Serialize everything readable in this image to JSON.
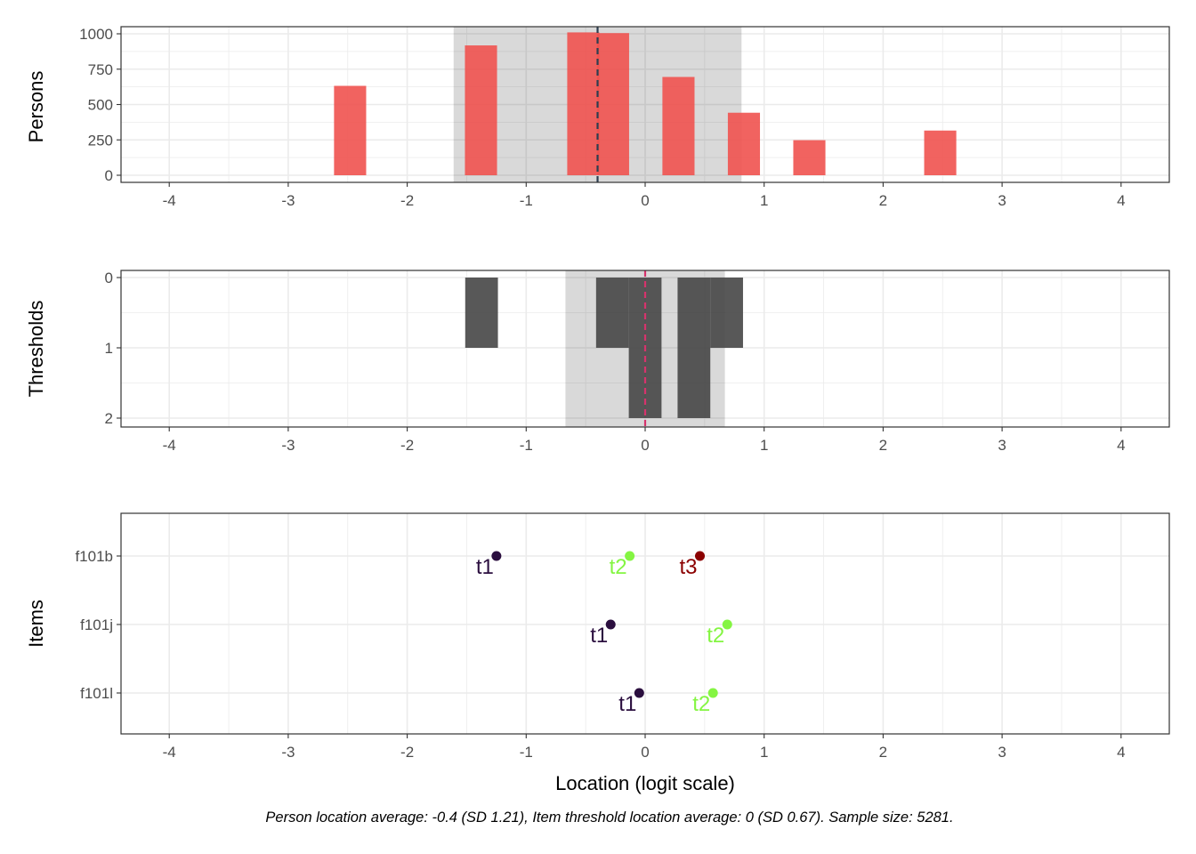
{
  "chart_data": [
    {
      "type": "bar",
      "panel": "persons",
      "ylabel": "Persons",
      "xlim": [
        -4,
        4
      ],
      "ylim": [
        0,
        1000
      ],
      "xticks": [
        -4,
        -3,
        -2,
        -1,
        0,
        1,
        2,
        3,
        4
      ],
      "yticks": [
        0,
        250,
        500,
        750,
        1000
      ],
      "bin_width": 0.27,
      "bars": [
        {
          "x": -2.48,
          "value": 632
        },
        {
          "x": -1.38,
          "value": 918
        },
        {
          "x": -0.52,
          "value": 1010
        },
        {
          "x": -0.27,
          "value": 1005
        },
        {
          "x": 0.28,
          "value": 695
        },
        {
          "x": 0.83,
          "value": 442
        },
        {
          "x": 1.38,
          "value": 248
        },
        {
          "x": 2.48,
          "value": 316
        }
      ],
      "bar_color": "#f0524f",
      "band": {
        "from": -1.61,
        "to": 0.81
      },
      "mean_line": -0.4,
      "mean_line_color": "#2d3e50",
      "grid": true
    },
    {
      "type": "bar",
      "panel": "thresholds",
      "ylabel": "Thresholds",
      "xlim": [
        -4,
        4
      ],
      "ylim": [
        0,
        2
      ],
      "y_reversed": true,
      "xticks": [
        -4,
        -3,
        -2,
        -1,
        0,
        1,
        2,
        3,
        4
      ],
      "yticks": [
        0,
        1,
        2
      ],
      "bin_width": 0.275,
      "bars": [
        {
          "x": -1.375,
          "value": 1
        },
        {
          "x": -0.275,
          "value": 1
        },
        {
          "x": 0,
          "value": 2
        },
        {
          "x": 0.41,
          "value": 2
        },
        {
          "x": 0.685,
          "value": 1
        }
      ],
      "bar_color": "#464646",
      "band": {
        "from": -0.67,
        "to": 0.67
      },
      "mean_line": 0,
      "mean_line_color": "#d6336c",
      "grid": true
    },
    {
      "type": "scatter",
      "panel": "items",
      "ylabel": "Items",
      "xlabel": "Location (logit scale)",
      "xlim": [
        -4,
        4
      ],
      "xticks": [
        -4,
        -3,
        -2,
        -1,
        0,
        1,
        2,
        3,
        4
      ],
      "categories": [
        "f101b",
        "f101j",
        "f101l"
      ],
      "points": [
        {
          "item": "f101b",
          "x": -1.25,
          "label": "t1",
          "color": "#2b0f3f"
        },
        {
          "item": "f101b",
          "x": -0.13,
          "label": "t2",
          "color": "#84f542"
        },
        {
          "item": "f101b",
          "x": 0.46,
          "label": "t3",
          "color": "#8b0000"
        },
        {
          "item": "f101j",
          "x": -0.29,
          "label": "t1",
          "color": "#2b0f3f"
        },
        {
          "item": "f101j",
          "x": 0.69,
          "label": "t2",
          "color": "#84f542"
        },
        {
          "item": "f101l",
          "x": -0.05,
          "label": "t1",
          "color": "#2b0f3f"
        },
        {
          "item": "f101l",
          "x": 0.57,
          "label": "t2",
          "color": "#84f542"
        }
      ],
      "grid": true
    }
  ],
  "caption": "Person location average: -0.4 (SD 1.21), Item threshold location average: 0 (SD 0.67). Sample size: 5281."
}
